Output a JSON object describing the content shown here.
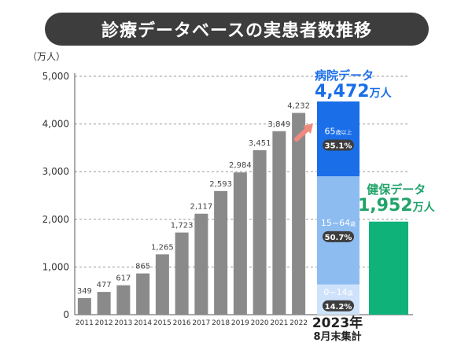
{
  "title": "診療データベースの実患者数推移",
  "chart_data": {
    "type": "bar",
    "ylabel": "（万人）",
    "ylim": [
      0,
      5000
    ],
    "yticks": [
      "0",
      "1,000",
      "2,000",
      "3,000",
      "4,000",
      "5,000"
    ],
    "grid": "dashed horizontal",
    "categories": [
      "2011",
      "2012",
      "2013",
      "2014",
      "2015",
      "2016",
      "2017",
      "2018",
      "2019",
      "2020",
      "2021",
      "2022"
    ],
    "values": [
      349,
      477,
      617,
      865,
      1265,
      1723,
      2117,
      2593,
      2984,
      3451,
      3849,
      4232
    ],
    "value_labels": [
      "349",
      "477",
      "617",
      "865",
      "1,265",
      "1,723",
      "2,117",
      "2,593",
      "2,984",
      "3,451",
      "3,849",
      "4,232"
    ],
    "bar_color": "#8a8a8a",
    "hospital": {
      "name": "病院データ",
      "total_label": "4,472",
      "unit": "万人",
      "total": 4472,
      "color": "#1a6ee8",
      "segments": [
        {
          "age": "0~14",
          "suffix": "歳",
          "pct": "14.2%",
          "share": 14.2,
          "color": "#cfe2fb"
        },
        {
          "age": "15~64",
          "suffix": "歳",
          "pct": "50.7%",
          "share": 50.7,
          "color": "#8dbcf1"
        },
        {
          "age": "65",
          "suffix": "歳以上",
          "pct": "35.1%",
          "share": 35.1,
          "color": "#1a6ee8"
        }
      ]
    },
    "kenpo": {
      "name": "健保データ",
      "total_label": "1,952",
      "unit": "万人",
      "total": 1952,
      "color": "#0fb37a",
      "label_color": "#22a36a"
    },
    "group_label": {
      "year": "2023年",
      "note": "8月末集計"
    },
    "arrow_color": "#f08a7e"
  }
}
